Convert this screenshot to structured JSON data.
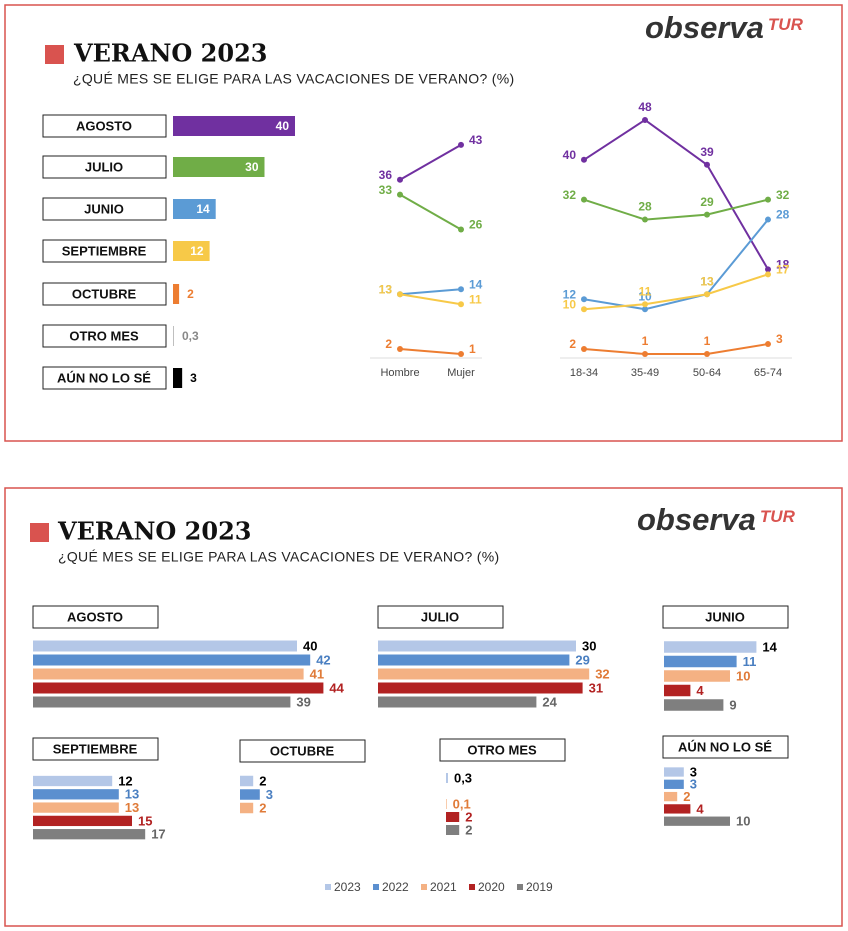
{
  "panels": [
    {
      "title": "VERANO 2023",
      "subtitle": "¿QUÉ MES SE ELIGE PARA LAS VACACIONES DE VERANO? (%)",
      "logo": {
        "name": "observa",
        "suffix": "TUR"
      },
      "chart_data": [
        {
          "type": "bar",
          "orientation": "horizontal",
          "categories": [
            "AGOSTO",
            "JULIO",
            "JUNIO",
            "SEPTIEMBRE",
            "OCTUBRE",
            "OTRO MES",
            "AÚN NO LO SÉ"
          ],
          "values": [
            40,
            30,
            14,
            12,
            2,
            0.3,
            3
          ],
          "value_labels": [
            "40",
            "30",
            "14",
            "12",
            "2",
            "0,3",
            "3"
          ],
          "colors": [
            "#7030a0",
            "#70ad47",
            "#5b9bd5",
            "#f7c948",
            "#ed7d31",
            "#bfbfbf",
            "#000000"
          ],
          "xlim": [
            0,
            40
          ]
        },
        {
          "type": "line",
          "categories": [
            "Hombre",
            "Mujer"
          ],
          "ylim": [
            0,
            50
          ],
          "series": [
            {
              "color": "#7030a0",
              "values": [
                36,
                43
              ]
            },
            {
              "color": "#70ad47",
              "values": [
                33,
                26
              ]
            },
            {
              "color": "#5b9bd5",
              "values": [
                13,
                14
              ]
            },
            {
              "color": "#f7c948",
              "values": [
                13,
                11
              ]
            },
            {
              "color": "#ed7d31",
              "values": [
                2,
                1
              ]
            }
          ]
        },
        {
          "type": "line",
          "categories": [
            "18-34",
            "35-49",
            "50-64",
            "65-74"
          ],
          "ylim": [
            0,
            50
          ],
          "series": [
            {
              "color": "#7030a0",
              "values": [
                40,
                48,
                39,
                18
              ]
            },
            {
              "color": "#70ad47",
              "values": [
                32,
                28,
                29,
                32
              ]
            },
            {
              "color": "#5b9bd5",
              "values": [
                12,
                10,
                13,
                28
              ]
            },
            {
              "color": "#f7c948",
              "values": [
                10,
                11,
                13,
                17
              ]
            },
            {
              "color": "#ed7d31",
              "values": [
                2,
                1,
                1,
                3
              ]
            }
          ]
        }
      ]
    },
    {
      "title": "VERANO 2023",
      "subtitle": "¿QUÉ MES SE ELIGE PARA LAS VACACIONES DE VERANO? (%)",
      "logo": {
        "name": "observa",
        "suffix": "TUR"
      },
      "chart_data": {
        "type": "bar",
        "orientation": "horizontal",
        "legend": "bottom",
        "categories": [
          "AGOSTO",
          "JULIO",
          "JUNIO",
          "SEPTIEMBRE",
          "OCTUBRE",
          "OTRO MES",
          "AÚN NO LO SÉ"
        ],
        "xlim": [
          0,
          40
        ],
        "series": [
          {
            "name": "2023",
            "color": "#b4c7e7",
            "label_color": "#000000",
            "values": [
              40,
              30,
              14,
              12,
              2,
              0.3,
              3
            ],
            "value_labels": [
              "40",
              "30",
              "14",
              "12",
              "2",
              "0,3",
              "3"
            ]
          },
          {
            "name": "2022",
            "color": "#5b8fcf",
            "label_color": "#4a7fc1",
            "values": [
              42,
              29,
              11,
              13,
              3,
              null,
              3
            ],
            "value_labels": [
              "42",
              "29",
              "11",
              "13",
              "3",
              null,
              "3"
            ]
          },
          {
            "name": "2021",
            "color": "#f4b183",
            "label_color": "#e07b39",
            "values": [
              41,
              32,
              10,
              13,
              2,
              0.1,
              2
            ],
            "value_labels": [
              "41",
              "32",
              "10",
              "13",
              "2",
              "0,1",
              "2"
            ]
          },
          {
            "name": "2020",
            "color": "#b22222",
            "label_color": "#b22222",
            "values": [
              44,
              31,
              4,
              15,
              null,
              2,
              4
            ],
            "value_labels": [
              "44",
              "31",
              "4",
              "15",
              null,
              "2",
              "4"
            ]
          },
          {
            "name": "2019",
            "color": "#7f7f7f",
            "label_color": "#666666",
            "values": [
              39,
              24,
              9,
              17,
              null,
              2,
              10
            ],
            "value_labels": [
              "39",
              "24",
              "9",
              "17",
              null,
              "2",
              "10"
            ]
          }
        ]
      }
    }
  ]
}
